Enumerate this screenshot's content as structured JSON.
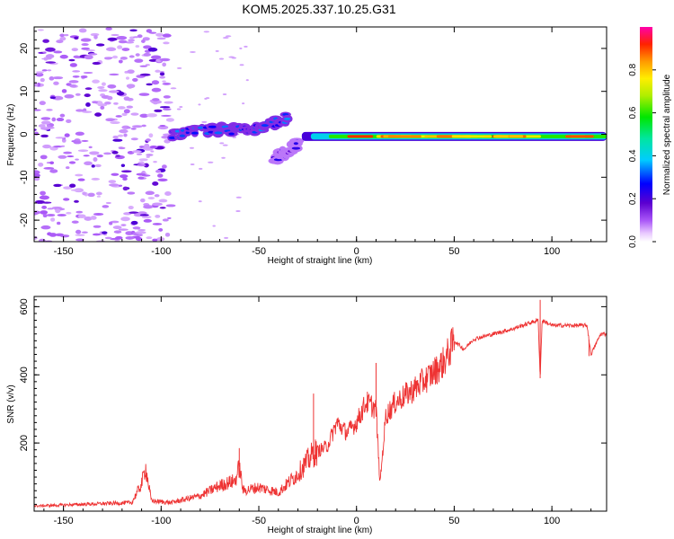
{
  "figure_title": "KOM5.2025.337.10.25.G31",
  "chart_data": [
    {
      "type": "heatmap",
      "panel": "top",
      "xlabel": "Height of straight line (km)",
      "ylabel": "Frequency (Hz)",
      "xlim": [
        -165,
        128
      ],
      "ylim": [
        -25,
        25
      ],
      "xticks": [
        -150,
        -100,
        -50,
        0,
        50,
        100
      ],
      "yticks": [
        -20,
        -10,
        0,
        10,
        20
      ],
      "colorbar": {
        "label": "Normalized spectral amplitude",
        "range": [
          0.0,
          1.0
        ],
        "ticks": [
          "0.0",
          "0.2",
          "0.4",
          "0.6",
          "0.8"
        ],
        "colormap": "rainbow (white/violet low to red/magenta high)"
      },
      "features": [
        {
          "name": "scattered noise",
          "x_range": [
            -165,
            -95
          ],
          "y_range": [
            -25,
            25
          ],
          "amplitude": 0.1
        },
        {
          "name": "drifting branch",
          "points": [
            [
              -95,
              0
            ],
            [
              -75,
              1
            ],
            [
              -60,
              1
            ],
            [
              -45,
              2
            ],
            [
              -35,
              4
            ]
          ],
          "amplitude": 0.25
        },
        {
          "name": "negative branch",
          "points": [
            [
              -42,
              -6
            ],
            [
              -35,
              -4
            ],
            [
              -30,
              -2
            ]
          ],
          "amplitude": 0.15
        },
        {
          "name": "carrier line",
          "x_range": [
            -28,
            128
          ],
          "y": -0.5,
          "amplitude": 0.85
        }
      ]
    },
    {
      "type": "line",
      "panel": "bottom",
      "xlabel": "Height of straight line (km)",
      "ylabel": "SNR (v/v)",
      "xlim": [
        -165,
        128
      ],
      "ylim": [
        0,
        630
      ],
      "xticks": [
        -150,
        -100,
        -50,
        0,
        50,
        100
      ],
      "yticks": [
        200,
        400,
        600
      ],
      "color": "#ee3333",
      "series": [
        {
          "name": "SNR",
          "x": [
            -165,
            -140,
            -115,
            -110,
            -108,
            -105,
            -95,
            -80,
            -70,
            -62,
            -60,
            -58,
            -50,
            -40,
            -30,
            -22,
            -15,
            -10,
            -5,
            0,
            5,
            10,
            12,
            15,
            20,
            30,
            40,
            45,
            50,
            55,
            60,
            70,
            80,
            90,
            93,
            94,
            95,
            100,
            110,
            118,
            120,
            125,
            128
          ],
          "y": [
            15,
            20,
            25,
            80,
            130,
            30,
            25,
            45,
            75,
            90,
            130,
            60,
            70,
            55,
            110,
            170,
            190,
            260,
            230,
            260,
            320,
            300,
            80,
            280,
            320,
            360,
            410,
            440,
            500,
            475,
            505,
            520,
            535,
            555,
            560,
            390,
            560,
            545,
            545,
            545,
            460,
            520,
            520
          ]
        }
      ],
      "spikes": [
        {
          "x": -108,
          "y": 130
        },
        {
          "x": -60,
          "y": 185
        },
        {
          "x": -22,
          "y": 345
        },
        {
          "x": 10,
          "y": 435
        },
        {
          "x": 12,
          "y": 80
        },
        {
          "x": 94,
          "y": 620
        },
        {
          "x": 94,
          "y": 390
        },
        {
          "x": 119,
          "y": 455
        }
      ]
    }
  ]
}
